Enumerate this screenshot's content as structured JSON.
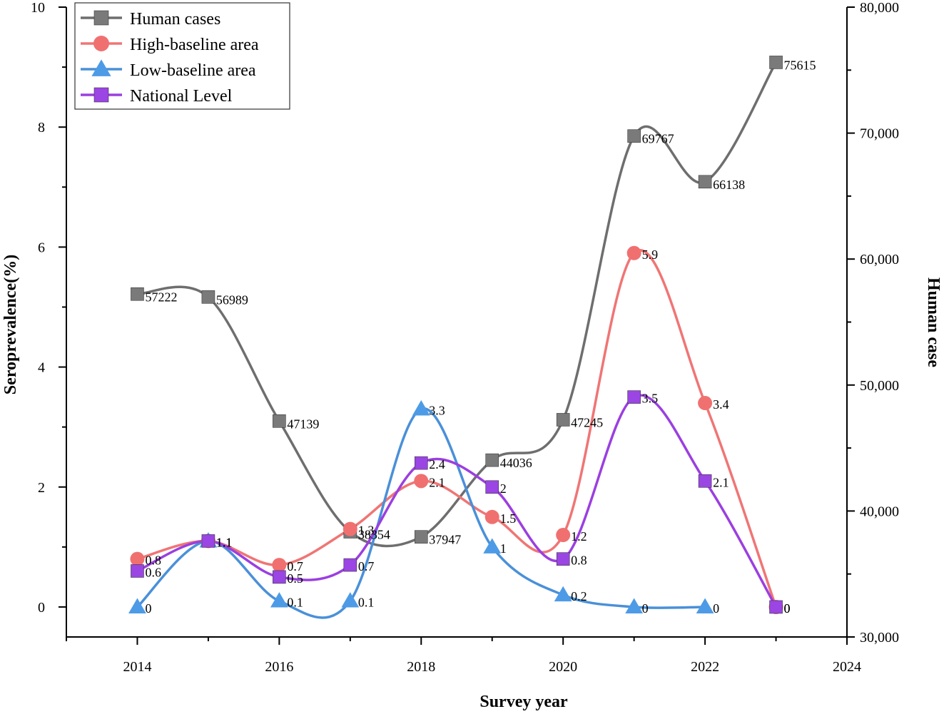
{
  "chart_data": {
    "type": "line",
    "xlabel": "Survey year",
    "ylabel": "Seroprevalence(%)",
    "y2label": "Human case",
    "xlim": [
      2013,
      2024
    ],
    "ylim": [
      -0.5,
      10
    ],
    "y2lim": [
      30000,
      80000
    ],
    "x_ticks": [
      2014,
      2016,
      2018,
      2020,
      2022,
      2024
    ],
    "y_ticks": [
      0,
      2,
      4,
      6,
      8,
      10
    ],
    "y2_ticks": [
      30000,
      40000,
      50000,
      60000,
      70000,
      80000
    ],
    "y2_tick_labels": [
      "30,000",
      "40,000",
      "50,000",
      "60,000",
      "70,000",
      "80,000"
    ],
    "legend_position": "top-left",
    "series": [
      {
        "name": "Human cases",
        "axis": "right",
        "marker": "square",
        "color": "#6e6e6e",
        "marker_color": "#7a7a7a",
        "x": [
          2014,
          2015,
          2016,
          2017,
          2018,
          2019,
          2020,
          2021,
          2022,
          2023
        ],
        "values": [
          57222,
          56989,
          47139,
          38354,
          37947,
          44036,
          47245,
          69767,
          66138,
          75615
        ],
        "labels": [
          "57222",
          "56989",
          "47139",
          "38354",
          "37947",
          "44036",
          "47245",
          "69767",
          "66138",
          "75615"
        ]
      },
      {
        "name": "High-baseline area",
        "axis": "left",
        "marker": "circle",
        "color": "#f07575",
        "marker_color": "#f07070",
        "x": [
          2014,
          2015,
          2016,
          2017,
          2018,
          2019,
          2020,
          2021,
          2022,
          2023
        ],
        "values": [
          0.8,
          1.1,
          0.7,
          1.3,
          2.1,
          1.5,
          1.2,
          5.9,
          3.4,
          0
        ],
        "labels": [
          "0.8",
          "1.1",
          "0.7",
          "1.3",
          "2.1",
          "1.5",
          "1.2",
          "5.9",
          "3.4",
          "0"
        ]
      },
      {
        "name": "Low-baseline area",
        "axis": "left",
        "marker": "triangle",
        "color": "#4a90d9",
        "marker_color": "#4d9be6",
        "x": [
          2014,
          2015,
          2016,
          2017,
          2018,
          2019,
          2020,
          2021,
          2022
        ],
        "values": [
          0,
          1.1,
          0.1,
          0.1,
          3.3,
          1,
          0.2,
          0,
          0
        ],
        "labels": [
          "0",
          "1.1",
          "0.1",
          "0.1",
          "3.3",
          "1",
          "0.2",
          "0",
          "0"
        ]
      },
      {
        "name": "National Level",
        "axis": "left",
        "marker": "square",
        "color": "#9b3fe0",
        "marker_color": "#9b45e4",
        "x": [
          2014,
          2015,
          2016,
          2017,
          2018,
          2019,
          2020,
          2021,
          2022,
          2023
        ],
        "values": [
          0.6,
          1.1,
          0.5,
          0.7,
          2.4,
          2,
          0.8,
          3.5,
          2.1,
          0
        ],
        "labels": [
          "0.6",
          "1.1",
          "0.5",
          "0.7",
          "2.4",
          "2",
          "0.8",
          "3.5",
          "2.1",
          "0"
        ]
      }
    ]
  }
}
